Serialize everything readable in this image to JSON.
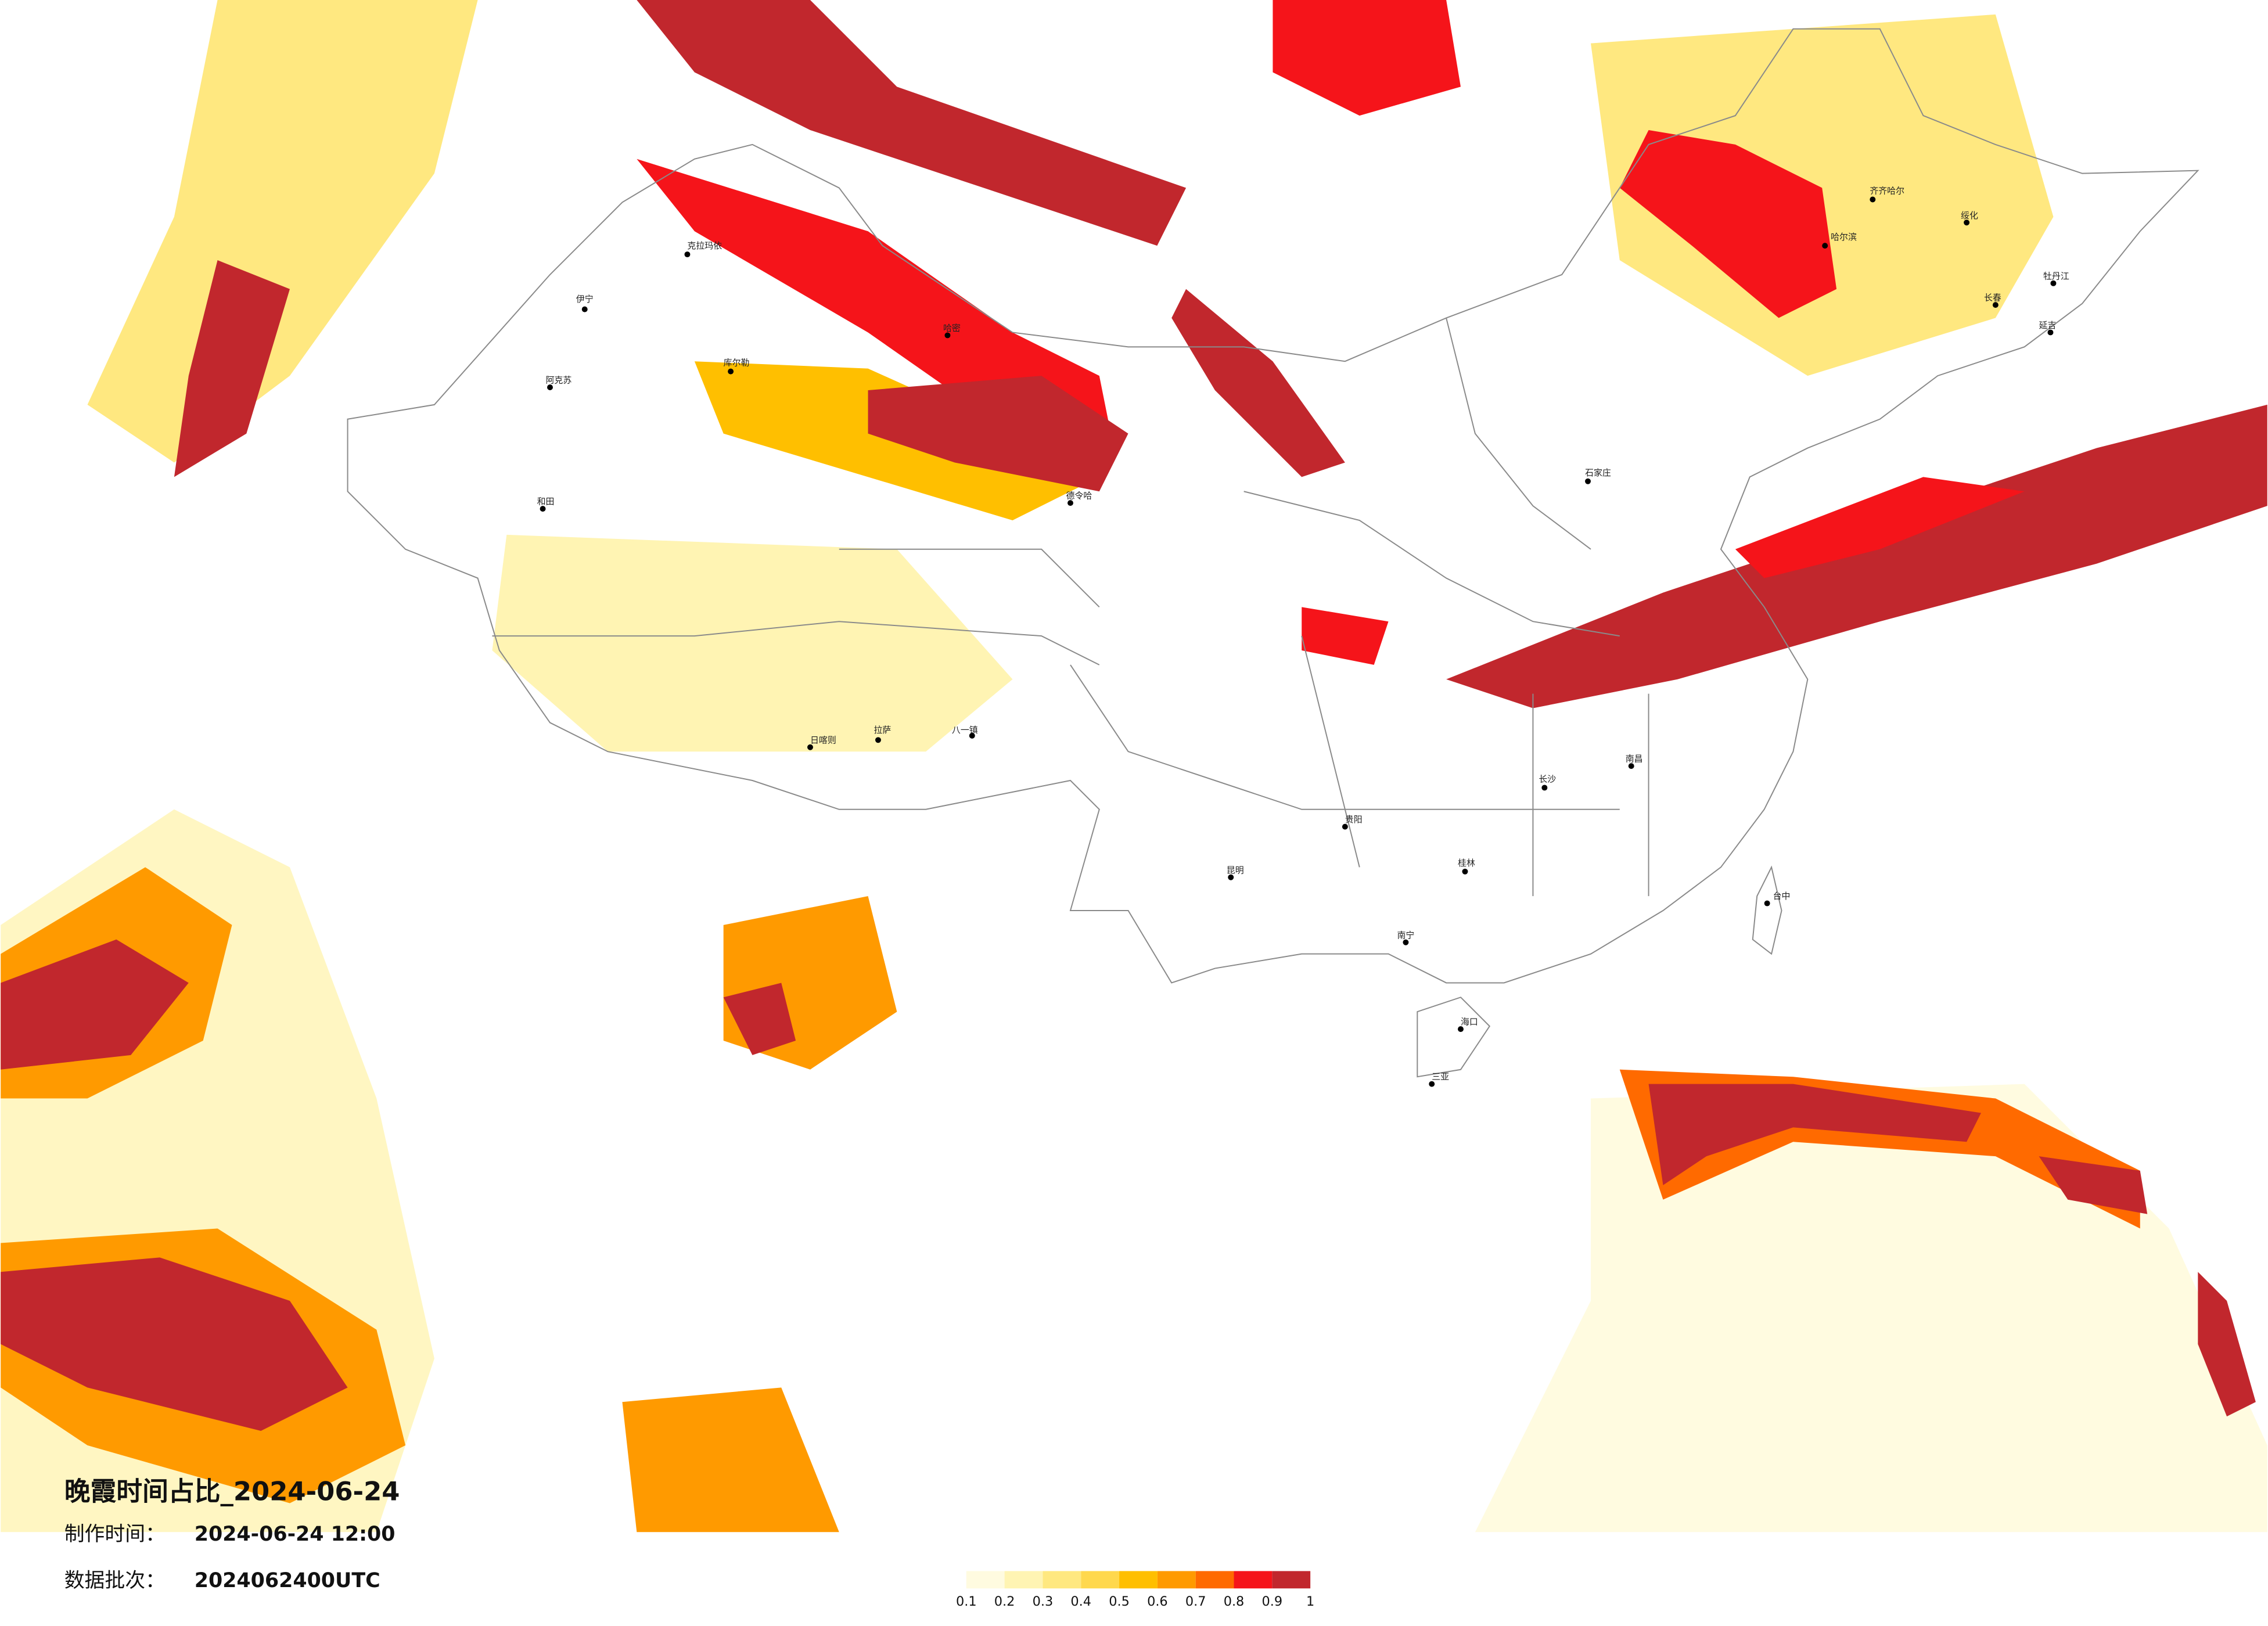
{
  "title": "晚霞时间占比_2024-06-24",
  "made_label": "制作时间：",
  "made_time": "2024-06-24 12:00",
  "batch_label": "数据批次：",
  "batch": "2024062400UTC",
  "legend": {
    "ticks": [
      0.1,
      0.2,
      0.3,
      0.4,
      0.5,
      0.6,
      0.7,
      0.8,
      0.9,
      1
    ],
    "colors": [
      "#fffbe0",
      "#fff4b3",
      "#ffe880",
      "#ffd84d",
      "#ffbf00",
      "#ff9a00",
      "#ff6a00",
      "#f5141a",
      "#c1272d"
    ]
  },
  "cities": [
    "伊宁",
    "克拉玛依",
    "阿克苏",
    "库尔勒",
    "哈密",
    "和田",
    "德令哈",
    "日喀则",
    "拉萨",
    "八一镇",
    "石家庄",
    "齐齐哈尔",
    "长春",
    "牡丹江",
    "绥化",
    "南昌",
    "长沙",
    "贵阳",
    "昆明",
    "南宁",
    "桂林",
    "海口",
    "三亚",
    "台中",
    "哈尔滨",
    "延吉"
  ]
}
